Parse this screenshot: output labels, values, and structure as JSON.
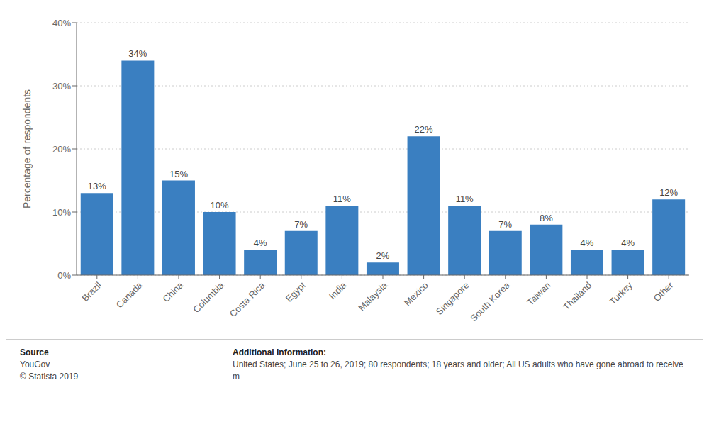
{
  "chart_data": {
    "type": "bar",
    "ylabel": "Percentage of respondents",
    "categories": [
      "Brazil",
      "Canada",
      "China",
      "Columbia",
      "Costa Rica",
      "Egypt",
      "India",
      "Malaysia",
      "Mexico",
      "Singapore",
      "South Korea",
      "Taiwan",
      "Thailand",
      "Turkey",
      "Other"
    ],
    "values": [
      13,
      34,
      15,
      10,
      4,
      7,
      11,
      2,
      22,
      11,
      7,
      8,
      4,
      4,
      12
    ],
    "value_labels": [
      "13%",
      "34%",
      "15%",
      "10%",
      "4%",
      "7%",
      "11%",
      "2%",
      "22%",
      "11%",
      "7%",
      "8%",
      "4%",
      "4%",
      "12%"
    ],
    "data_labels": true,
    "color": "#3a7fc1",
    "ylim": [
      0,
      40
    ],
    "yticks": [
      {
        "value": 0,
        "label": "0%"
      },
      {
        "value": 10,
        "label": "10%"
      },
      {
        "value": 20,
        "label": "20%"
      },
      {
        "value": 30,
        "label": "30%"
      },
      {
        "value": 40,
        "label": "40%"
      }
    ],
    "grid": true,
    "annotations": [
      "Source",
      "YouGov",
      "© Statista 2019",
      "Additional Information:",
      "United States; June 25 to 26, 2019; 80 respondents; 18 years and older; All US adults who have gone abroad to receive m"
    ]
  }
}
